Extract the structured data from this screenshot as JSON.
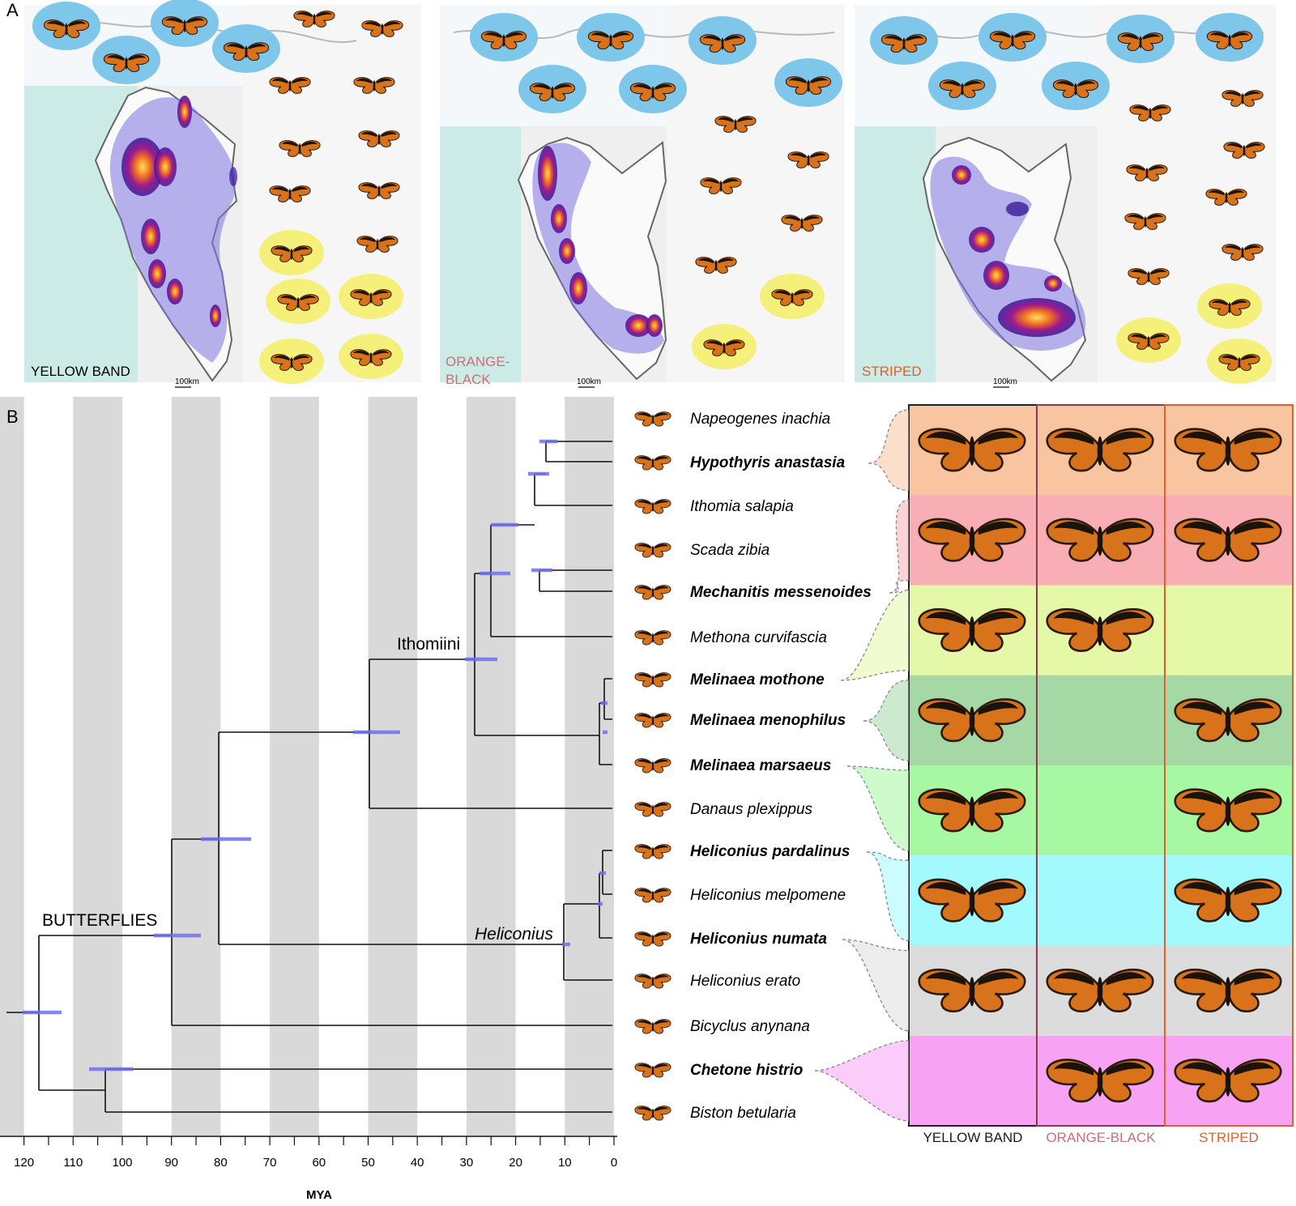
{
  "panels": {
    "a": "A",
    "b": "B"
  },
  "maps": [
    {
      "label_lines": [
        "YELLOW BAND"
      ],
      "scale": "100km",
      "label_color": "#1a1a1a"
    },
    {
      "label_lines": [
        "ORANGE-",
        "BLACK"
      ],
      "scale": "100km",
      "label_color": "#c8707a"
    },
    {
      "label_lines": [
        "STRIPED"
      ],
      "scale": "100km",
      "label_color": "#e0602a"
    }
  ],
  "tree": {
    "clade_labels": {
      "butterflies": "BUTTERFLIES",
      "ithomiini": "Ithomiini",
      "heliconius": "Heliconius"
    },
    "taxa": [
      {
        "name": "Napeogenes inachia",
        "bold": false
      },
      {
        "name": "Hypothyris anastasia",
        "bold": true
      },
      {
        "name": "Ithomia salapia",
        "bold": false
      },
      {
        "name": "Scada zibia",
        "bold": false
      },
      {
        "name": "Mechanitis messenoides",
        "bold": true
      },
      {
        "name": "Methona curvifascia",
        "bold": false
      },
      {
        "name": "Melinaea mothone",
        "bold": true
      },
      {
        "name": "Melinaea menophilus",
        "bold": true
      },
      {
        "name": "Melinaea marsaeus",
        "bold": true
      },
      {
        "name": "Danaus plexippus",
        "bold": false
      },
      {
        "name": "Heliconius pardalinus",
        "bold": true
      },
      {
        "name": "Heliconius melpomene",
        "bold": false
      },
      {
        "name": "Heliconius numata",
        "bold": true
      },
      {
        "name": "Heliconius erato",
        "bold": false
      },
      {
        "name": "Bicyclus anynana",
        "bold": false
      },
      {
        "name": "Chetone histrio",
        "bold": true
      },
      {
        "name": "Biston betularia",
        "bold": false
      }
    ],
    "axis_ticks": [
      "120",
      "110",
      "100",
      "90",
      "80",
      "70",
      "60",
      "50",
      "40",
      "30",
      "20",
      "10",
      "0"
    ],
    "axis_label": "MYA"
  },
  "pattern_grid": {
    "columns": [
      {
        "label": "YELLOW BAND",
        "color": "#1a1a1a"
      },
      {
        "label": "ORANGE-BLACK",
        "color": "#c8707a"
      },
      {
        "label": "STRIPED",
        "color": "#e0602a"
      }
    ],
    "rows": [
      {
        "bg": "#f9c4a0",
        "cells": [
          true,
          true,
          true
        ]
      },
      {
        "bg": "#f8aeb4",
        "cells": [
          true,
          true,
          true
        ]
      },
      {
        "bg": "#e4f8a8",
        "cells": [
          true,
          true,
          false
        ]
      },
      {
        "bg": "#a6d8a6",
        "cells": [
          true,
          false,
          true
        ]
      },
      {
        "bg": "#a6f8a2",
        "cells": [
          true,
          false,
          true
        ]
      },
      {
        "bg": "#a2faff",
        "cells": [
          true,
          false,
          true
        ]
      },
      {
        "bg": "#dcdcdc",
        "cells": [
          true,
          true,
          true
        ]
      },
      {
        "bg": "#f8a2f4",
        "cells": [
          false,
          true,
          true
        ]
      }
    ]
  }
}
